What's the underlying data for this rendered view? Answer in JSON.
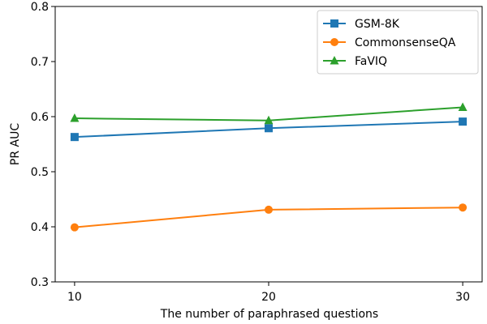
{
  "chart_data": {
    "type": "line",
    "title": "",
    "xlabel": "The number of paraphrased questions",
    "ylabel": "PR AUC",
    "x": [
      10,
      20,
      30
    ],
    "xticks": [
      "10",
      "20",
      "30"
    ],
    "xlim": [
      9,
      31
    ],
    "ylim": [
      0.3,
      0.8
    ],
    "yticks": [
      "0.3",
      "0.4",
      "0.5",
      "0.6",
      "0.7",
      "0.8"
    ],
    "grid": false,
    "legend_position": "top-right",
    "series": [
      {
        "name": "GSM-8K",
        "values": [
          0.563,
          0.579,
          0.591
        ],
        "color": "#1f77b4",
        "marker": "square"
      },
      {
        "name": "CommonsenseQA",
        "values": [
          0.399,
          0.431,
          0.435
        ],
        "color": "#ff7f0e",
        "marker": "circle"
      },
      {
        "name": "FaVIQ",
        "values": [
          0.597,
          0.593,
          0.617
        ],
        "color": "#2ca02c",
        "marker": "triangle"
      }
    ]
  }
}
